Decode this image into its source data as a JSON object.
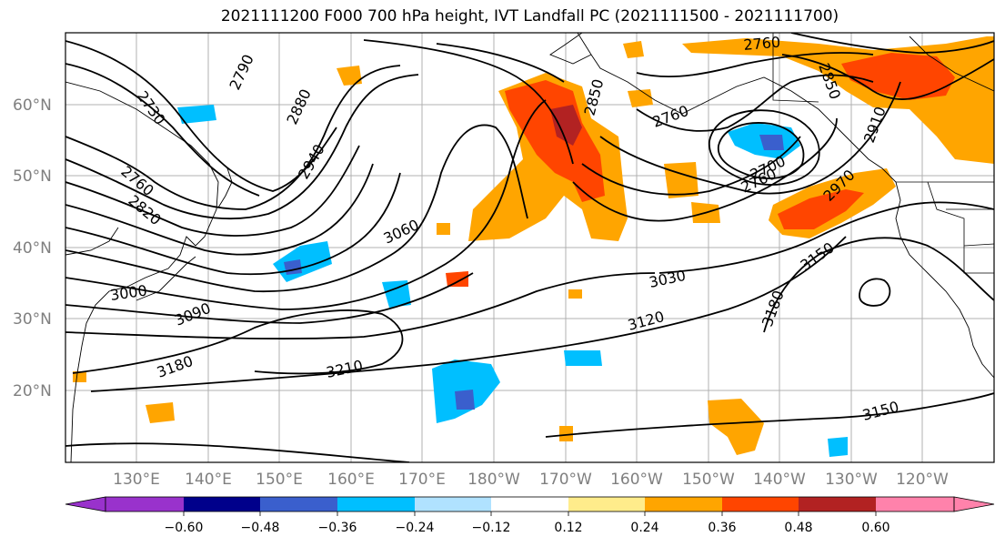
{
  "title": "2021111200 F000 700 hPa height, IVT Landfall PC (2021111500 - 2021111700)",
  "lat_labels": [
    "60°N",
    "50°N",
    "40°N",
    "30°N",
    "20°N"
  ],
  "lon_labels": [
    "130°E",
    "140°E",
    "150°E",
    "160°E",
    "170°E",
    "180°W",
    "170°W",
    "160°W",
    "150°W",
    "140°W",
    "130°W",
    "120°W"
  ],
  "contour_labels": [
    "2730",
    "2790",
    "2880",
    "2940",
    "2760",
    "2820",
    "3060",
    "3000",
    "3090",
    "3180",
    "3210",
    "3030",
    "3120",
    "2760",
    "2850",
    "2910",
    "2700",
    "2760",
    "2970",
    "2760",
    "3150",
    "3180",
    "3150",
    "2850"
  ],
  "colorbar": {
    "ticks": [
      "−0.60",
      "−0.48",
      "−0.36",
      "−0.24",
      "−0.12",
      "0.12",
      "0.24",
      "0.36",
      "0.48",
      "0.60"
    ],
    "colors": [
      "#9932cc",
      "#00008b",
      "#3a5fcd",
      "#00bfff",
      "#b0e2ff",
      "#ffffff",
      "#ffec8b",
      "#ffa500",
      "#ff4500",
      "#b22222",
      "#ff82ab"
    ]
  }
}
